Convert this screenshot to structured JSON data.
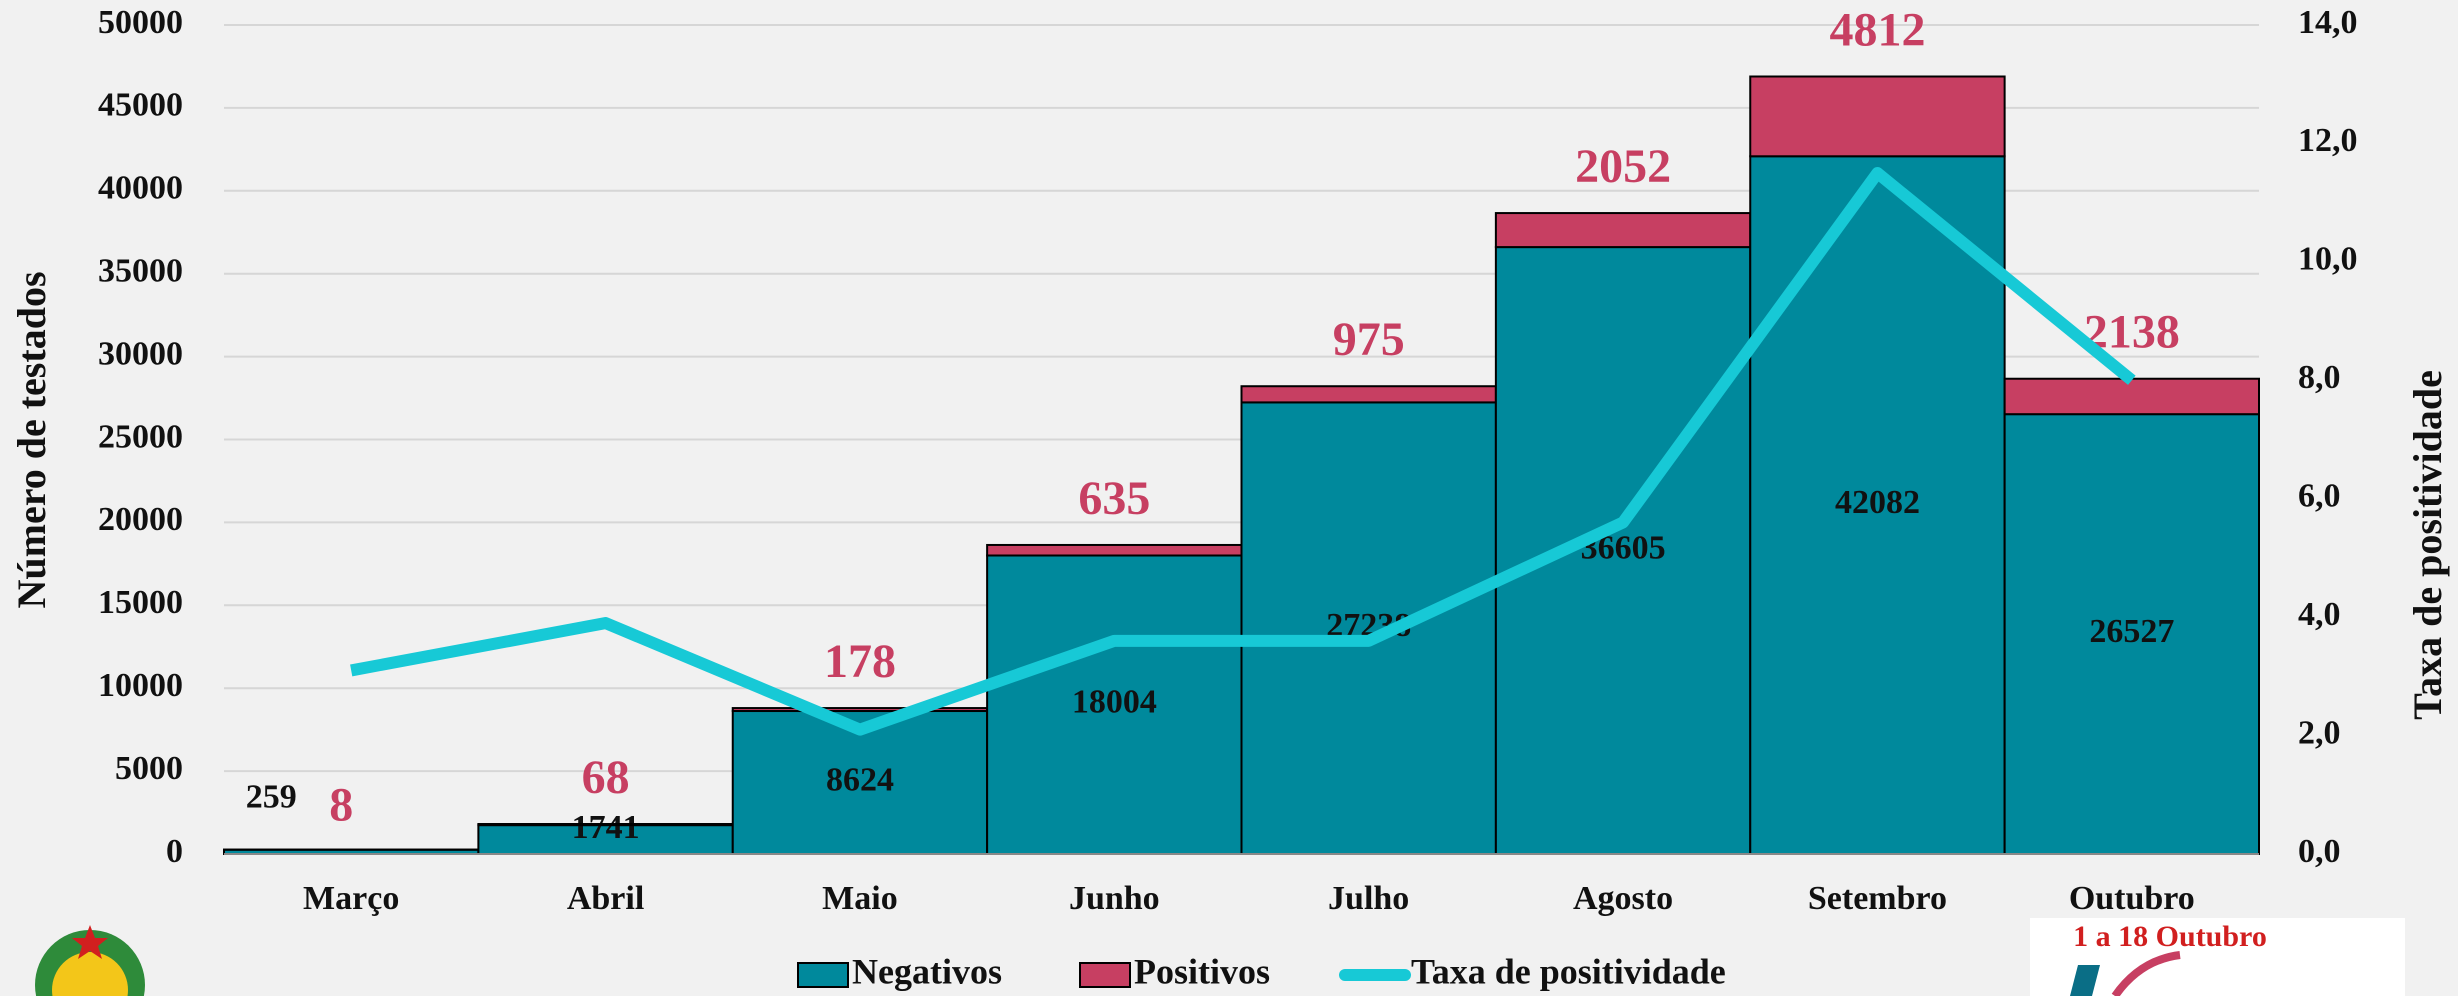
{
  "chart_data": {
    "type": "bar",
    "stacked": true,
    "categories": [
      "Março",
      "Abril",
      "Maio",
      "Junho",
      "Julho",
      "Agosto",
      "Setembro",
      "Outubro"
    ],
    "series": [
      {
        "name": "Negativos",
        "type": "bar",
        "color": "#00899c",
        "values": [
          259,
          1741,
          8624,
          18004,
          27238,
          36605,
          42082,
          26527
        ]
      },
      {
        "name": "Positivos",
        "type": "bar",
        "color": "#c73f62",
        "values": [
          8,
          68,
          178,
          635,
          975,
          2052,
          4812,
          2138
        ]
      },
      {
        "name": "Taxa de positividade",
        "type": "line",
        "axis": "y2",
        "color": "#17c9d6",
        "values": [
          3.1,
          3.9,
          2.1,
          3.6,
          3.6,
          5.6,
          11.5,
          8.0
        ]
      }
    ],
    "ylabel": "Número de testados",
    "y2label": "Taxa de positividade",
    "ylim": [
      0,
      50000
    ],
    "yticks": [
      0,
      5000,
      10000,
      15000,
      20000,
      25000,
      30000,
      35000,
      40000,
      45000,
      50000
    ],
    "y2lim": [
      0,
      14
    ],
    "y2ticks": [
      {
        "value": 0,
        "label": "0,0"
      },
      {
        "value": 2,
        "label": "2,0"
      },
      {
        "value": 4,
        "label": "4,0"
      },
      {
        "value": 6,
        "label": "6,0"
      },
      {
        "value": 8,
        "label": "8,0"
      },
      {
        "value": 10,
        "label": "10,0"
      },
      {
        "value": 12,
        "label": "12,0"
      },
      {
        "value": 14,
        "label": "14,0"
      }
    ],
    "grid": true,
    "legend": "bottom",
    "annotation": "1 a 18 Outubro"
  }
}
